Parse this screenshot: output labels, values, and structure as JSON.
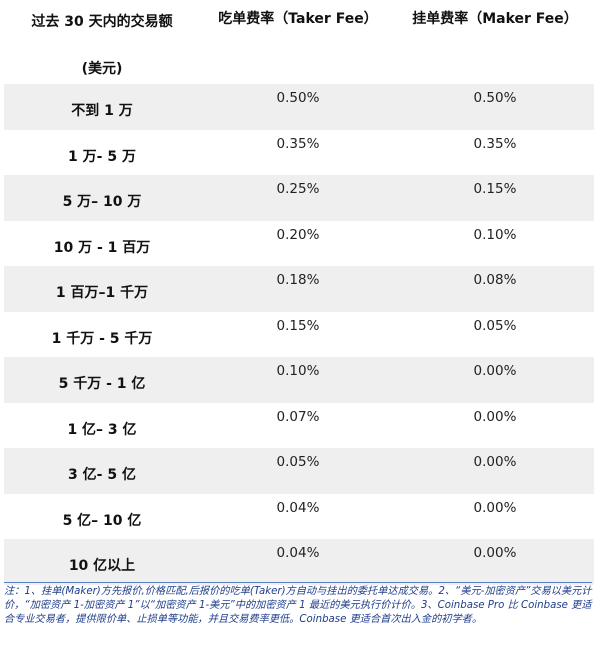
{
  "header": {
    "volume_line1": "过去 30 天内的交易额",
    "volume_line2": "(美元)",
    "taker": "吃单费率（Taker Fee）",
    "maker": "挂单费率（Maker Fee）"
  },
  "rows": [
    {
      "tier": "不到 1 万",
      "taker": "0.50%",
      "maker": "0.50%"
    },
    {
      "tier": "1 万- 5 万",
      "taker": "0.35%",
      "maker": "0.35%"
    },
    {
      "tier": "5 万– 10 万",
      "taker": "0.25%",
      "maker": "0.15%"
    },
    {
      "tier": "10 万 - 1 百万",
      "taker": "0.20%",
      "maker": "0.10%"
    },
    {
      "tier": "1 百万–1 千万",
      "taker": "0.18%",
      "maker": "0.08%"
    },
    {
      "tier": "1 千万 - 5 千万",
      "taker": "0.15%",
      "maker": "0.05%"
    },
    {
      "tier": "5 千万 - 1 亿",
      "taker": "0.10%",
      "maker": "0.00%"
    },
    {
      "tier": "1 亿– 3 亿",
      "taker": "0.07%",
      "maker": "0.00%"
    },
    {
      "tier": "3 亿- 5 亿",
      "taker": "0.05%",
      "maker": "0.00%"
    },
    {
      "tier": "5 亿– 10 亿",
      "taker": "0.04%",
      "maker": "0.00%"
    },
    {
      "tier": "10 亿以上",
      "taker": "0.04%",
      "maker": "0.00%"
    }
  ],
  "note": "注：1、挂单(Maker)方先报价,价格匹配,后报价的吃单(Taker)方自动与挂出的委托单达成交易。2、“美元-加密资产”交易以美元计价，“加密资产 1-加密资产 1”以“加密资产 1-美元”中的加密资产 1 最近的美元执行价计价。3、Coinbase Pro 比 Coinbase 更适合专业交易者，提供限价单、止损单等功能，并且交易费率更低。Coinbase 更适合首次出入金的初学者。"
}
